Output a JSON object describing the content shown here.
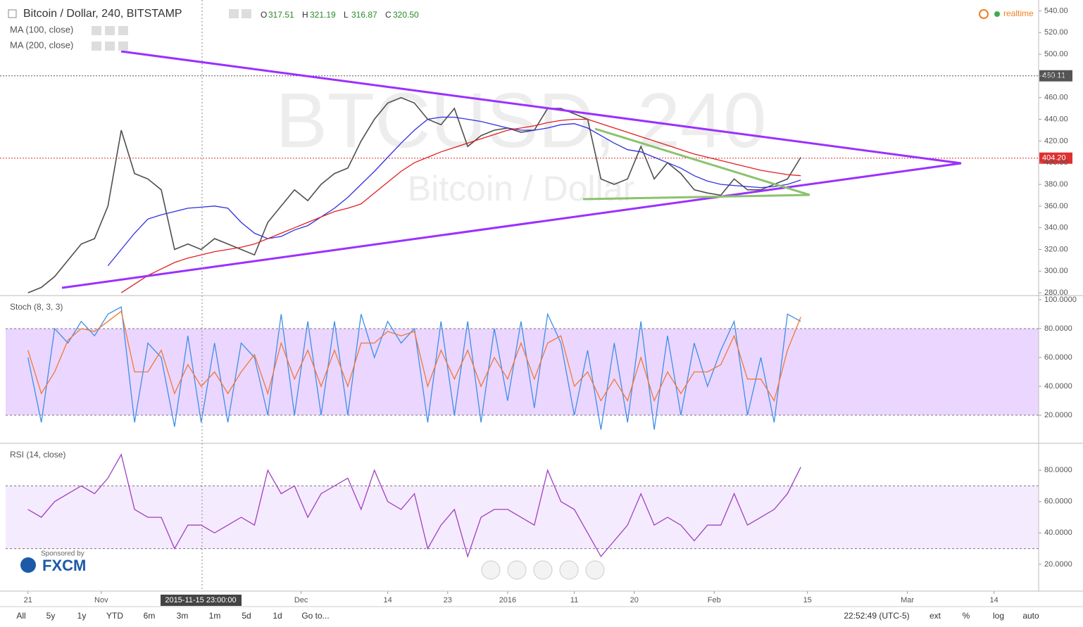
{
  "header": {
    "realtime": "realtime",
    "crosshair_label": "2015-11-15 23:00:00"
  },
  "toolbar": {
    "ranges": [
      "All",
      "5y",
      "1y",
      "YTD",
      "6m",
      "3m",
      "1m",
      "5d",
      "1d",
      "Go to..."
    ],
    "clock": "22:52:49 (UTC-5)",
    "options": [
      "ext",
      "%",
      "log",
      "auto"
    ]
  },
  "sponsor": {
    "text": "Sponsored by",
    "brand": "FXCM"
  },
  "chart_data": [
    {
      "type": "line",
      "title": "Bitcoin / Dollar, 240, BITSTAMP",
      "ohlc": [
        {
          "label": "O",
          "value": "317.51"
        },
        {
          "label": "H",
          "value": "321.19"
        },
        {
          "label": "L",
          "value": "316.87"
        },
        {
          "label": "C",
          "value": "320.50"
        }
      ],
      "watermark": [
        "BTCUSD, 240",
        "Bitcoin / Dollar"
      ],
      "x": [
        0,
        2,
        4,
        6,
        8,
        10,
        12,
        14,
        16,
        18,
        20,
        22,
        24,
        26,
        28,
        30,
        32,
        34,
        36,
        38,
        40,
        42,
        44,
        46,
        48,
        50,
        52,
        54,
        56,
        58,
        60,
        62,
        64,
        66,
        68,
        70,
        72,
        74,
        76,
        78,
        80,
        82,
        84,
        86,
        88,
        90,
        92,
        94,
        96,
        98,
        100,
        102,
        104,
        106,
        108,
        110,
        112,
        114,
        116
      ],
      "xlim": [
        -4.2,
        151.7
      ],
      "ylim": [
        277.5,
        550
      ],
      "yticks": [
        {
          "value": 280,
          "label": "280.00"
        },
        {
          "value": 300,
          "label": "300.00"
        },
        {
          "value": 320,
          "label": "320.00"
        },
        {
          "value": 340,
          "label": "340.00"
        },
        {
          "value": 360,
          "label": "360.00"
        },
        {
          "value": 380,
          "label": "380.00"
        },
        {
          "value": 400,
          "label": "400.00"
        },
        {
          "value": 420,
          "label": "420.00"
        },
        {
          "value": 440,
          "label": "440.00"
        },
        {
          "value": 460,
          "label": "460.00"
        },
        {
          "value": 480,
          "label": "480.00"
        },
        {
          "value": 500,
          "label": "500.00"
        },
        {
          "value": 520,
          "label": "520.00"
        },
        {
          "value": 540,
          "label": "540.00"
        }
      ],
      "price_lines": [
        {
          "value": 480.11,
          "color": "#555555"
        },
        {
          "value": 404.2,
          "label": "404.20",
          "color": "#e03030"
        }
      ],
      "series": [
        {
          "color": "#4f4f4f",
          "values": [
            280,
            285,
            295,
            310,
            325,
            330,
            360,
            430,
            390,
            385,
            375,
            320,
            325,
            320,
            330,
            325,
            320,
            315,
            345,
            360,
            375,
            365,
            380,
            390,
            395,
            420,
            440,
            455,
            460,
            455,
            440,
            435,
            450,
            415,
            425,
            430,
            432,
            428,
            430,
            450,
            450,
            445,
            440,
            385,
            380,
            385,
            415,
            385,
            400,
            390,
            375,
            372,
            370,
            385,
            375,
            375,
            380,
            385,
            405
          ]
        },
        {
          "name": "MA (100, close)",
          "color": "#3030e0",
          "values": [
            null,
            null,
            null,
            null,
            null,
            null,
            305,
            320,
            335,
            348,
            352,
            355,
            358,
            359,
            360,
            358,
            345,
            335,
            330,
            332,
            338,
            342,
            350,
            358,
            368,
            380,
            392,
            405,
            418,
            430,
            440,
            442,
            442,
            440,
            438,
            435,
            432,
            430,
            430,
            432,
            435,
            436,
            432,
            425,
            418,
            412,
            410,
            405,
            400,
            395,
            388,
            383,
            380,
            379,
            378,
            377,
            378,
            380,
            384
          ]
        },
        {
          "name": "MA (200, close)",
          "color": "#e02020",
          "values": [
            null,
            null,
            null,
            null,
            null,
            null,
            null,
            280,
            288,
            296,
            302,
            308,
            312,
            315,
            318,
            320,
            322,
            325,
            330,
            335,
            340,
            345,
            350,
            355,
            358,
            362,
            372,
            382,
            392,
            400,
            405,
            410,
            414,
            418,
            422,
            426,
            430,
            432,
            434,
            437,
            439,
            440,
            440,
            436,
            432,
            428,
            424,
            420,
            416,
            412,
            408,
            405,
            402,
            399,
            396,
            393,
            391,
            389,
            388
          ]
        }
      ]
    },
    {
      "type": "line",
      "title": "Stoch (8, 3, 3)",
      "x": [
        0,
        2,
        4,
        6,
        8,
        10,
        12,
        14,
        16,
        18,
        20,
        22,
        24,
        26,
        28,
        30,
        32,
        34,
        36,
        38,
        40,
        42,
        44,
        46,
        48,
        50,
        52,
        54,
        56,
        58,
        60,
        62,
        64,
        66,
        68,
        70,
        72,
        74,
        76,
        78,
        80,
        82,
        84,
        86,
        88,
        90,
        92,
        94,
        96,
        98,
        100,
        102,
        104,
        106,
        108,
        110,
        112,
        114,
        116
      ],
      "xlim": [
        -4.2,
        151.7
      ],
      "ylim": [
        0.5,
        102.4
      ],
      "band": [
        20,
        80
      ],
      "band_color": "#e6ccff",
      "yticks": [
        {
          "value": 20,
          "label": "20.0000"
        },
        {
          "value": 40,
          "label": "40.0000"
        },
        {
          "value": 60,
          "label": "60.0000"
        },
        {
          "value": 80,
          "label": "80.0000"
        },
        {
          "value": 100,
          "label": "100.0000"
        }
      ],
      "series": [
        {
          "color": "#3d8fe8",
          "values": [
            60,
            15,
            80,
            70,
            85,
            75,
            90,
            95,
            15,
            70,
            60,
            12,
            75,
            15,
            70,
            15,
            70,
            60,
            20,
            90,
            20,
            85,
            20,
            85,
            20,
            90,
            60,
            85,
            70,
            80,
            15,
            85,
            20,
            85,
            15,
            80,
            30,
            85,
            25,
            90,
            70,
            20,
            65,
            10,
            70,
            15,
            85,
            10,
            75,
            20,
            70,
            40,
            65,
            85,
            20,
            60,
            15,
            90,
            85
          ]
        },
        {
          "color": "#f07838",
          "values": [
            65,
            35,
            50,
            72,
            80,
            78,
            85,
            92,
            50,
            50,
            65,
            35,
            55,
            40,
            50,
            35,
            50,
            62,
            35,
            70,
            45,
            65,
            40,
            65,
            40,
            70,
            70,
            78,
            75,
            78,
            40,
            65,
            45,
            65,
            40,
            60,
            45,
            70,
            45,
            70,
            75,
            40,
            50,
            30,
            45,
            30,
            60,
            30,
            50,
            35,
            50,
            50,
            55,
            75,
            45,
            45,
            30,
            65,
            88
          ]
        }
      ]
    },
    {
      "type": "line",
      "title": "RSI (14, close)",
      "x": [
        0,
        2,
        4,
        6,
        8,
        10,
        12,
        14,
        16,
        18,
        20,
        22,
        24,
        26,
        28,
        30,
        32,
        34,
        36,
        38,
        40,
        42,
        44,
        46,
        48,
        50,
        52,
        54,
        56,
        58,
        60,
        62,
        64,
        66,
        68,
        70,
        72,
        74,
        76,
        78,
        80,
        82,
        84,
        86,
        88,
        90,
        92,
        94,
        96,
        98,
        100,
        102,
        104,
        106,
        108,
        110,
        112,
        114,
        116
      ],
      "xlim": [
        -4.2,
        151.7
      ],
      "ylim": [
        2.9,
        96.7
      ],
      "band": [
        30,
        70
      ],
      "band_color": "#f3e6ff",
      "yticks": [
        {
          "value": 20,
          "label": "20.0000"
        },
        {
          "value": 40,
          "label": "40.0000"
        },
        {
          "value": 60,
          "label": "60.0000"
        },
        {
          "value": 80,
          "label": "80.0000"
        }
      ],
      "xticks": [
        {
          "value": 0,
          "label": "21"
        },
        {
          "value": 11,
          "label": "Nov"
        },
        {
          "value": 41,
          "label": "Dec"
        },
        {
          "value": 54,
          "label": "14"
        },
        {
          "value": 63,
          "label": "23"
        },
        {
          "value": 72,
          "label": "2016"
        },
        {
          "value": 82,
          "label": "11"
        },
        {
          "value": 91,
          "label": "20"
        },
        {
          "value": 103,
          "label": "Feb"
        },
        {
          "value": 117,
          "label": "15"
        },
        {
          "value": 132,
          "label": "Mar"
        },
        {
          "value": 145,
          "label": "14"
        }
      ],
      "series": [
        {
          "color": "#a040c0",
          "values": [
            55,
            50,
            60,
            65,
            70,
            65,
            75,
            90,
            55,
            50,
            50,
            30,
            45,
            45,
            40,
            45,
            50,
            45,
            80,
            65,
            70,
            50,
            65,
            70,
            75,
            55,
            80,
            60,
            55,
            65,
            30,
            45,
            55,
            25,
            50,
            55,
            55,
            50,
            45,
            80,
            60,
            55,
            40,
            25,
            35,
            45,
            65,
            45,
            50,
            45,
            35,
            45,
            45,
            65,
            45,
            50,
            55,
            65,
            82
          ]
        }
      ]
    }
  ]
}
